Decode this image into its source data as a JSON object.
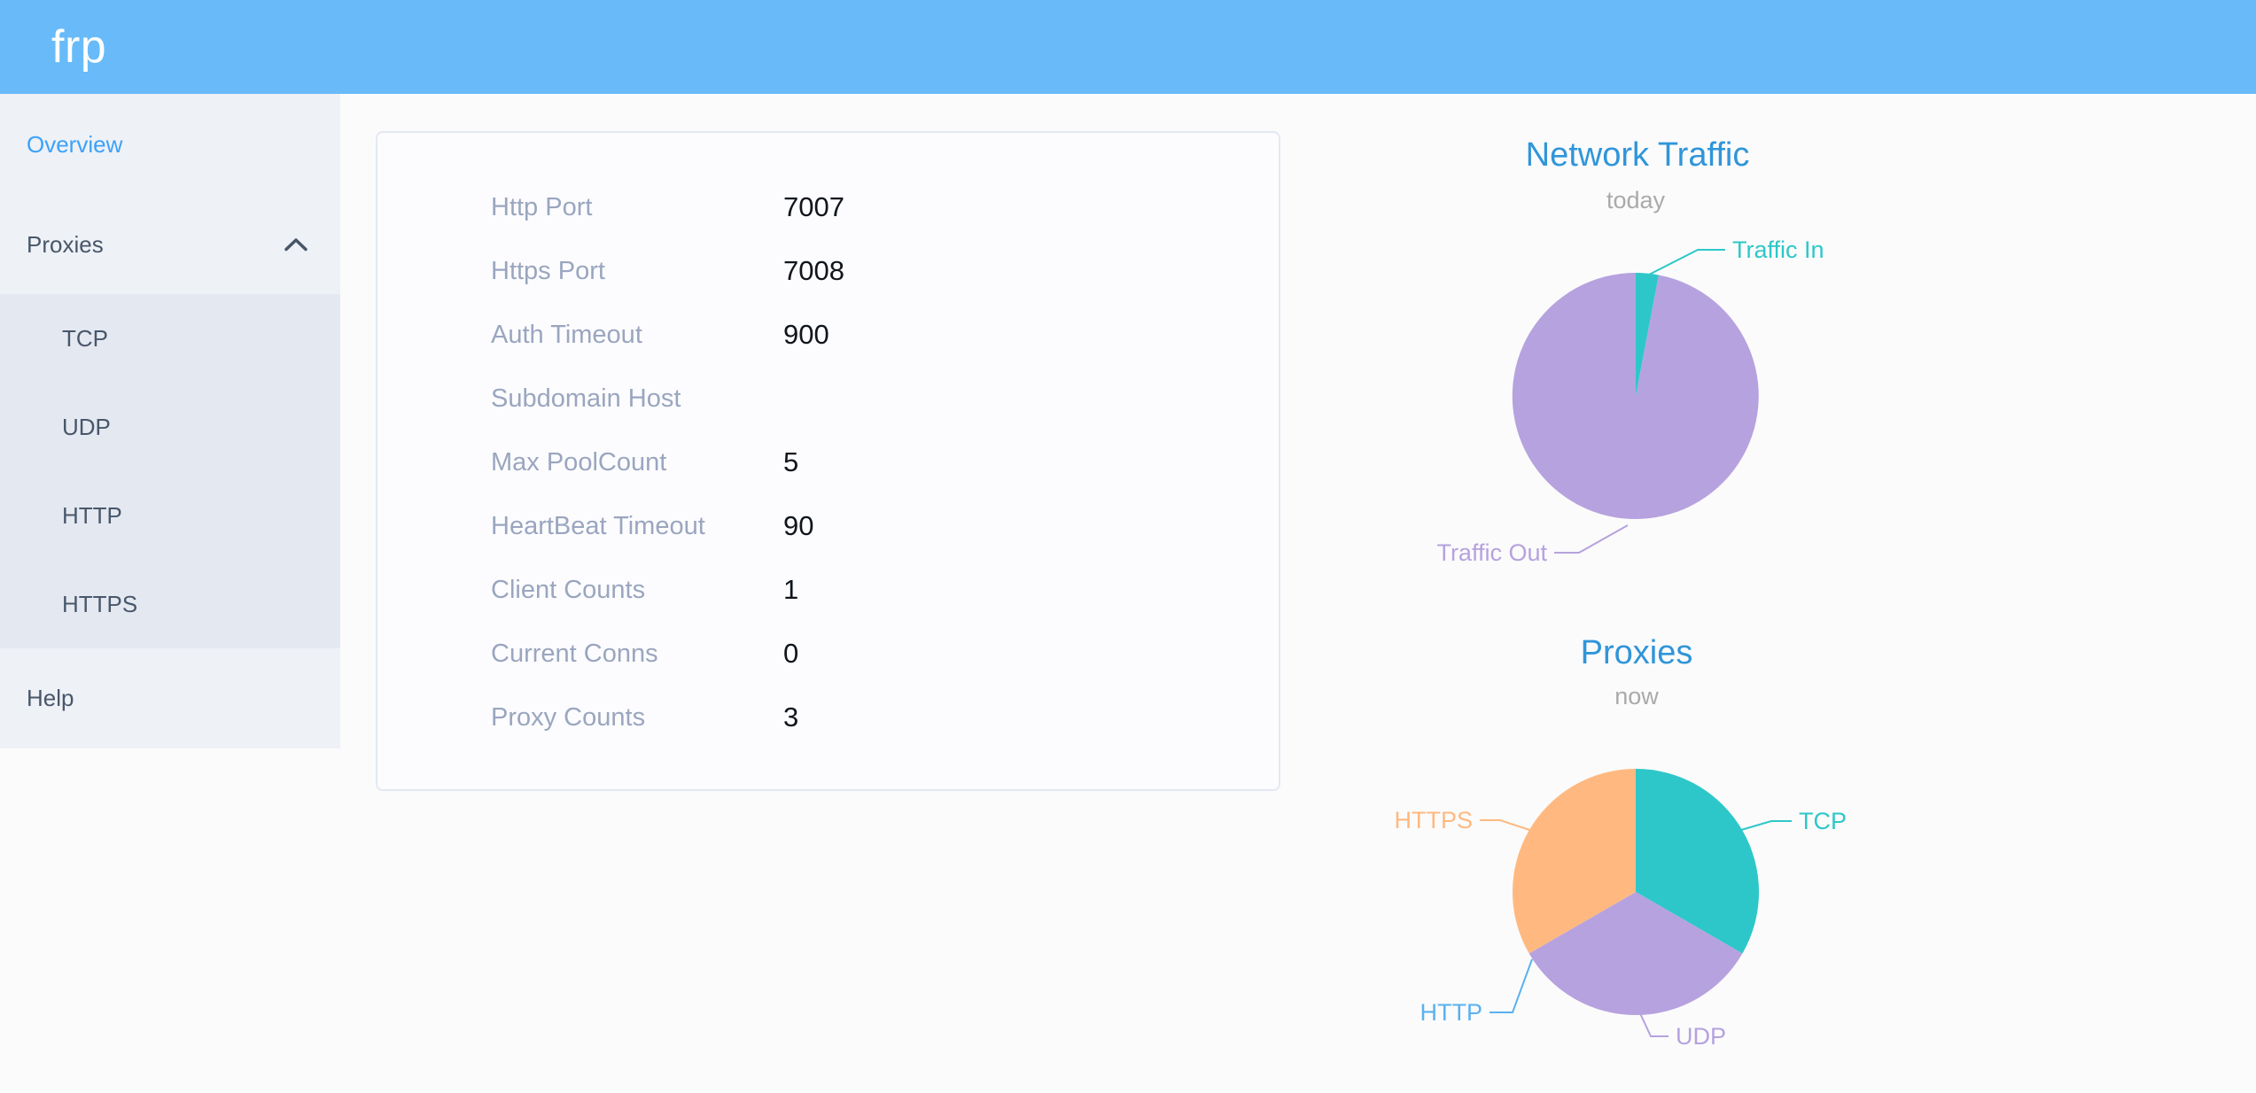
{
  "header": {
    "logo": "frp"
  },
  "sidebar": {
    "items": [
      {
        "label": "Overview",
        "active": true
      },
      {
        "label": "Proxies",
        "expanded": true,
        "children": [
          "TCP",
          "UDP",
          "HTTP",
          "HTTPS"
        ]
      },
      {
        "label": "Help"
      }
    ]
  },
  "overview_card": {
    "rows": [
      {
        "label": "Http Port",
        "value": "7007"
      },
      {
        "label": "Https Port",
        "value": "7008"
      },
      {
        "label": "Auth Timeout",
        "value": "900"
      },
      {
        "label": "Subdomain Host",
        "value": ""
      },
      {
        "label": "Max PoolCount",
        "value": "5"
      },
      {
        "label": "HeartBeat Timeout",
        "value": "90"
      },
      {
        "label": "Client Counts",
        "value": "1"
      },
      {
        "label": "Current Conns",
        "value": "0"
      },
      {
        "label": "Proxy Counts",
        "value": "3"
      }
    ]
  },
  "chart_data": [
    {
      "type": "pie",
      "title": "Network Traffic",
      "subtitle": "today",
      "legend_position": "none",
      "label_position": "outside",
      "start_angle_deg_from_top": 0,
      "clockwise": true,
      "categories": [
        "Traffic In",
        "Traffic Out"
      ],
      "values": [
        3,
        97
      ],
      "slices": [
        {
          "name": "Traffic In",
          "value": 3,
          "color": "#2ec7c9",
          "label_line": [
            [
              415,
              204
            ],
            [
              470,
              176
            ],
            [
              501,
              176
            ]
          ],
          "label_pos": [
            509,
            176
          ],
          "label_anchor": "start"
        },
        {
          "name": "Traffic Out",
          "value": 97,
          "color": "#b6a2de",
          "label_line": [
            [
              391,
              487
            ],
            [
              336,
              518
            ],
            [
              308,
              518
            ]
          ],
          "label_pos": [
            300,
            518
          ],
          "label_anchor": "end"
        }
      ],
      "layout": {
        "title_pos": [
          402,
          69
        ],
        "subtitle_pos": [
          400,
          120
        ],
        "center": [
          400,
          341
        ],
        "radius": 139
      }
    },
    {
      "type": "pie",
      "title": "Proxies",
      "subtitle": "now",
      "legend_position": "none",
      "label_position": "outside",
      "start_angle_deg_from_top": 0,
      "clockwise": true,
      "categories": [
        "TCP",
        "UDP",
        "HTTP",
        "HTTPS"
      ],
      "values": [
        1,
        1,
        0,
        1
      ],
      "slices": [
        {
          "name": "TCP",
          "value": 1,
          "color": "#2ec7c9",
          "label_line": [
            [
              519,
              271
            ],
            [
              553,
              261
            ],
            [
              576,
              261
            ]
          ],
          "label_pos": [
            584,
            261
          ],
          "label_anchor": "start"
        },
        {
          "name": "UDP",
          "value": 1,
          "color": "#b6a2de",
          "label_line": [
            [
              404,
              476
            ],
            [
              417,
              504
            ],
            [
              437,
              504
            ]
          ],
          "label_pos": [
            445,
            504
          ],
          "label_anchor": "start"
        },
        {
          "name": "HTTP",
          "value": 0,
          "color": "#5ab1ef",
          "label_line": [
            [
              283,
              417
            ],
            [
              261,
              477
            ],
            [
              235,
              477
            ]
          ],
          "label_pos": [
            227,
            477
          ],
          "label_anchor": "end"
        },
        {
          "name": "HTTPS",
          "value": 1,
          "color": "#ffb980",
          "label_line": [
            [
              280,
              271
            ],
            [
              247,
              260
            ],
            [
              224,
              260
            ]
          ],
          "label_pos": [
            216,
            260
          ],
          "label_anchor": "end"
        }
      ],
      "layout": {
        "title_pos": [
          401,
          71
        ],
        "subtitle_pos": [
          401,
          120
        ],
        "center": [
          400,
          341
        ],
        "radius": 139
      }
    }
  ],
  "colors": {
    "header_bg": "#68bbf8",
    "page_bg": "#fbfbfc",
    "sidebar_bg": "#eef1f6",
    "submenu_bg": "#e4e8f1",
    "menu_text": "#48576a",
    "menu_active": "#3da1f9",
    "card_bg": "#fcfcfe",
    "card_border": "#e4e8f4",
    "label_color": "#9aa6bf",
    "value_color": "#10151c",
    "title_color": "#3095d9",
    "subtitle_color": "#aaaaaa",
    "logo_color": "#ffffff",
    "chevron_color": "#475669"
  }
}
